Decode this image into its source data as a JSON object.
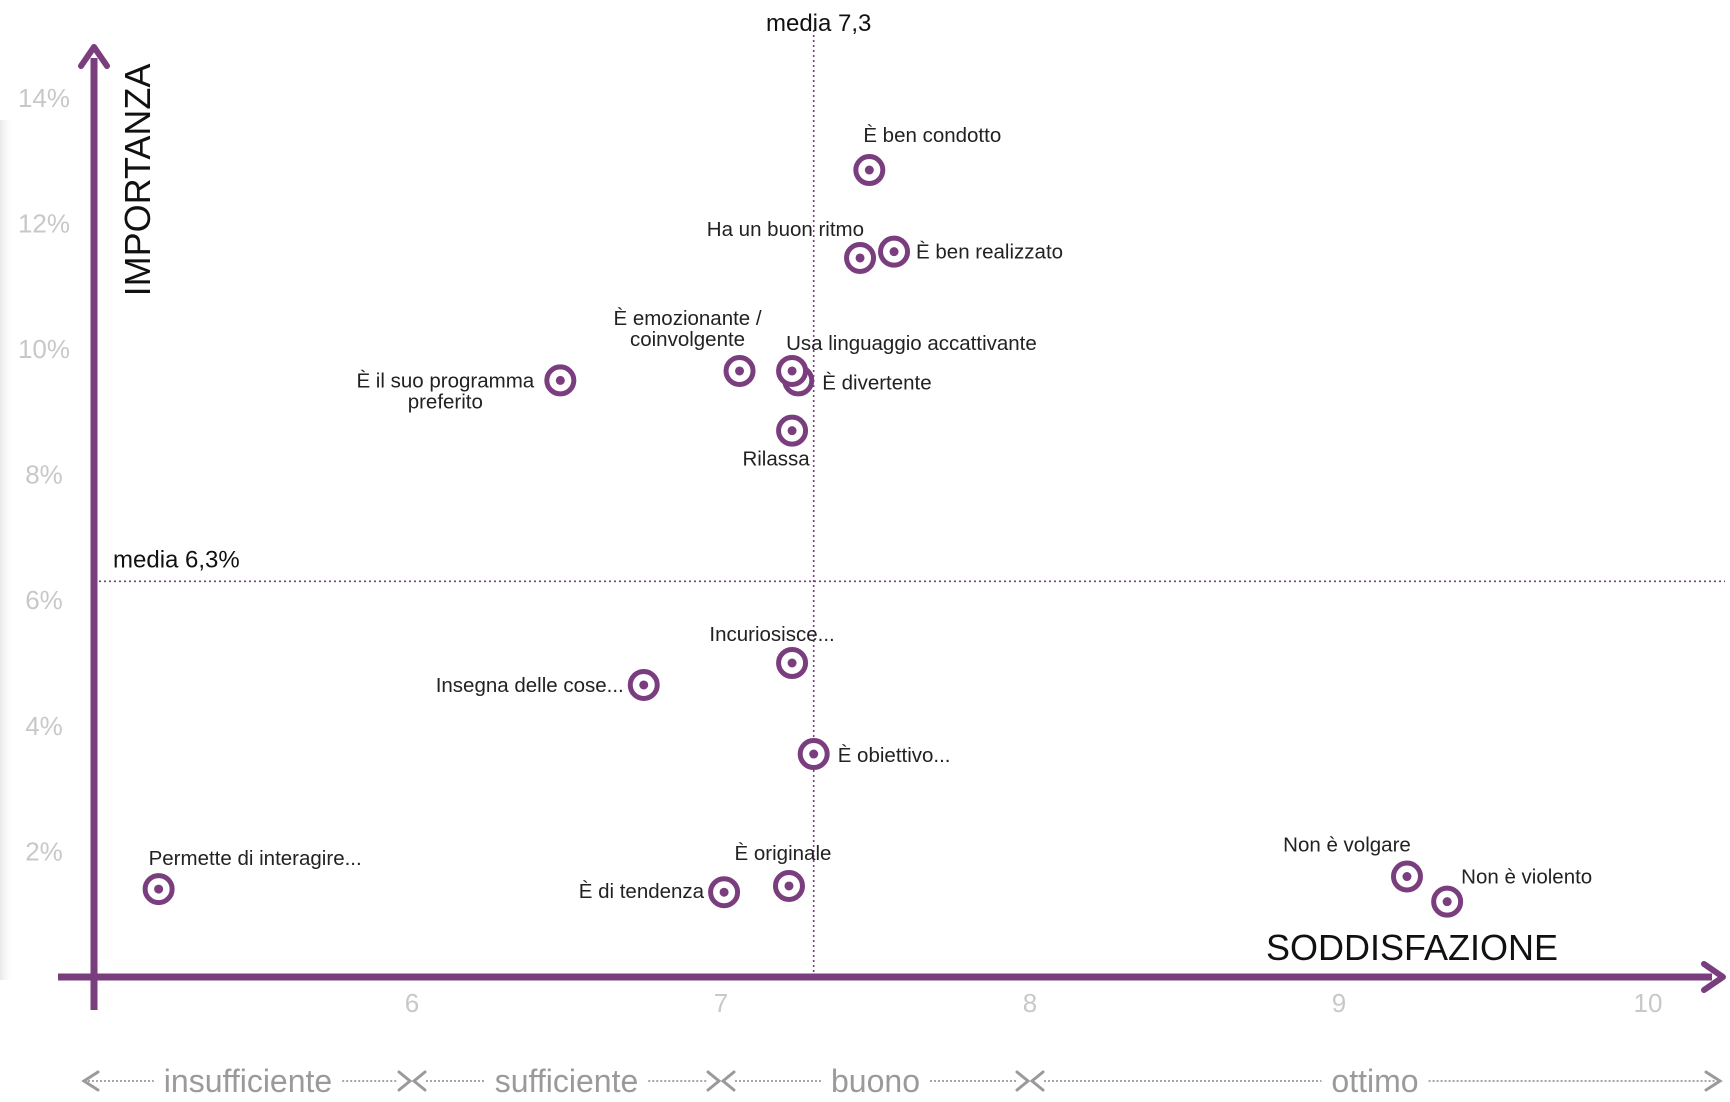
{
  "colors": {
    "accent": "#7a3e7e",
    "tick": "#c8c8c8",
    "band": "#9a9a9a"
  },
  "chart_data": {
    "type": "scatter",
    "xlabel": "SODDISFAZIONE",
    "ylabel": "IMPORTANZA",
    "xlim": [
      4.98,
      10.25
    ],
    "ylim": [
      0,
      15
    ],
    "x_ticks": [
      {
        "value": 6,
        "label": "6"
      },
      {
        "value": 7,
        "label": "7"
      },
      {
        "value": 8,
        "label": "8"
      },
      {
        "value": 9,
        "label": "9"
      },
      {
        "value": 10,
        "label": "10"
      }
    ],
    "y_ticks": [
      {
        "value": 2,
        "label": "2%"
      },
      {
        "value": 4,
        "label": "4%"
      },
      {
        "value": 6,
        "label": "6%"
      },
      {
        "value": 8,
        "label": "8%"
      },
      {
        "value": 10,
        "label": "10%"
      },
      {
        "value": 12,
        "label": "12%"
      },
      {
        "value": 14,
        "label": "14%"
      }
    ],
    "mean_x": {
      "value": 7.3,
      "label": "media 7,3"
    },
    "mean_y": {
      "value": 6.3,
      "label": "media 6,3%"
    },
    "bands": [
      {
        "label": "insufficiente",
        "from": 4.98,
        "to": 6
      },
      {
        "label": "sufficiente",
        "from": 6,
        "to": 7
      },
      {
        "label": "buono",
        "from": 7,
        "to": 8
      },
      {
        "label": "ottimo",
        "from": 8,
        "to": 10.25
      }
    ],
    "points": [
      {
        "label": "È ben condotto",
        "x": 7.48,
        "y": 12.85
      },
      {
        "label": "È ben realizzato",
        "x": 7.56,
        "y": 11.55
      },
      {
        "label": "Ha un buon ritmo",
        "x": 7.45,
        "y": 11.45
      },
      {
        "label": "È emozionante / coinvolgente",
        "x": 7.06,
        "y": 9.65
      },
      {
        "label": "Usa linguaggio accattivante",
        "x": 7.23,
        "y": 9.65
      },
      {
        "label": "È divertente",
        "x": 7.25,
        "y": 9.5
      },
      {
        "label": "È il suo programma preferito",
        "x": 6.48,
        "y": 9.5
      },
      {
        "label": "Rilassa",
        "x": 7.23,
        "y": 8.7
      },
      {
        "label": "Incuriosisce...",
        "x": 7.23,
        "y": 5.0
      },
      {
        "label": "Insegna delle cose...",
        "x": 6.75,
        "y": 4.65
      },
      {
        "label": "È obiettivo...",
        "x": 7.3,
        "y": 3.55
      },
      {
        "label": "Permette di interagire...",
        "x": 5.18,
        "y": 1.4
      },
      {
        "label": "È originale",
        "x": 7.22,
        "y": 1.45
      },
      {
        "label": "È di tendenza",
        "x": 7.01,
        "y": 1.35
      },
      {
        "label": "Non è volgare",
        "x": 9.22,
        "y": 1.6
      },
      {
        "label": "Non è violento",
        "x": 9.35,
        "y": 1.2
      }
    ]
  }
}
